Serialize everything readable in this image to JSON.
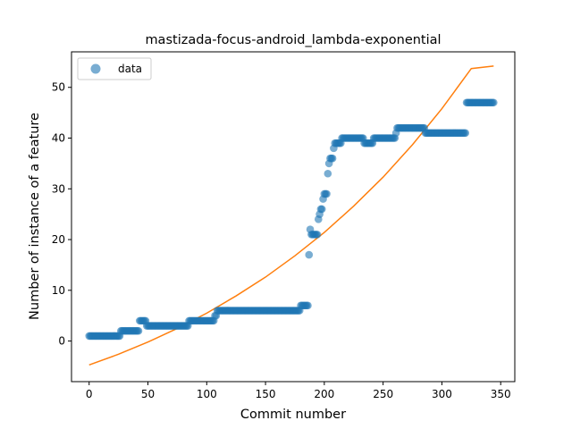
{
  "chart_data": {
    "type": "scatter",
    "title": "mastizada-focus-android_lambda-exponential",
    "xlabel": "Commit number",
    "ylabel": "Number of instance of a feature",
    "xlim": [
      -15,
      362
    ],
    "ylim": [
      -8,
      57
    ],
    "xticks": [
      0,
      50,
      100,
      150,
      200,
      250,
      300,
      350
    ],
    "yticks": [
      0,
      10,
      20,
      30,
      40,
      50
    ],
    "grid": false,
    "legend": {
      "position": "top-left",
      "entries": [
        "data"
      ]
    },
    "colors": {
      "data": "#1f77b4",
      "fit": "#ff7f0e"
    },
    "series": [
      {
        "name": "data",
        "kind": "scatter",
        "segments": [
          {
            "x": [
              0,
              26
            ],
            "y": 1
          },
          {
            "x": [
              27,
              42
            ],
            "y": 2
          },
          {
            "x": [
              43,
              48
            ],
            "y": 4
          },
          {
            "x": [
              49,
              84
            ],
            "y": 3
          },
          {
            "x": [
              85,
              106
            ],
            "y": 4
          },
          {
            "x": [
              107,
              108
            ],
            "y": 5
          },
          {
            "x": [
              109,
              179
            ],
            "y": 6
          },
          {
            "x": [
              180,
              186
            ],
            "y": 7
          }
        ],
        "points": [
          [
            187,
            17
          ],
          [
            188,
            22
          ],
          [
            189,
            21
          ],
          [
            190,
            21
          ],
          [
            191,
            21
          ],
          [
            192,
            21
          ],
          [
            193,
            21
          ],
          [
            194,
            21
          ],
          [
            195,
            24
          ],
          [
            196,
            25
          ],
          [
            197,
            26
          ],
          [
            198,
            26
          ],
          [
            199,
            28
          ],
          [
            200,
            29
          ],
          [
            201,
            29
          ],
          [
            202,
            29
          ],
          [
            203,
            33
          ],
          [
            204,
            35
          ],
          [
            205,
            36
          ],
          [
            206,
            36
          ],
          [
            207,
            36
          ],
          [
            208,
            38
          ],
          [
            209,
            39
          ],
          [
            210,
            39
          ],
          [
            211,
            39
          ],
          [
            212,
            39
          ],
          [
            213,
            39
          ],
          [
            214,
            39
          ],
          [
            215,
            40
          ],
          [
            216,
            40
          ],
          [
            217,
            40
          ],
          [
            218,
            40
          ],
          [
            219,
            40
          ],
          [
            220,
            40
          ],
          [
            221,
            40
          ],
          [
            222,
            40
          ],
          [
            223,
            40
          ],
          [
            224,
            40
          ],
          [
            225,
            40
          ],
          [
            226,
            40
          ],
          [
            227,
            40
          ],
          [
            228,
            40
          ],
          [
            229,
            40
          ],
          [
            230,
            40
          ],
          [
            231,
            40
          ],
          [
            232,
            40
          ],
          [
            233,
            40
          ],
          [
            234,
            39
          ],
          [
            235,
            39
          ],
          [
            236,
            39
          ],
          [
            237,
            39
          ],
          [
            238,
            39
          ],
          [
            239,
            39
          ],
          [
            240,
            39
          ],
          [
            241,
            39
          ],
          [
            242,
            40
          ],
          [
            243,
            40
          ],
          [
            244,
            40
          ],
          [
            245,
            40
          ],
          [
            246,
            40
          ],
          [
            247,
            40
          ],
          [
            248,
            40
          ],
          [
            249,
            40
          ],
          [
            250,
            40
          ],
          [
            251,
            40
          ],
          [
            252,
            40
          ],
          [
            253,
            40
          ],
          [
            254,
            40
          ],
          [
            255,
            40
          ],
          [
            256,
            40
          ],
          [
            257,
            40
          ],
          [
            258,
            40
          ],
          [
            259,
            40
          ],
          [
            260,
            40
          ],
          [
            261,
            41
          ],
          [
            262,
            42
          ],
          [
            263,
            42
          ],
          [
            264,
            42
          ],
          [
            265,
            42
          ],
          [
            266,
            42
          ],
          [
            267,
            42
          ],
          [
            268,
            42
          ],
          [
            269,
            42
          ],
          [
            270,
            42
          ],
          [
            271,
            42
          ],
          [
            272,
            42
          ],
          [
            273,
            42
          ],
          [
            274,
            42
          ],
          [
            275,
            42
          ],
          [
            276,
            42
          ],
          [
            277,
            42
          ],
          [
            278,
            42
          ],
          [
            279,
            42
          ],
          [
            280,
            42
          ],
          [
            281,
            42
          ],
          [
            282,
            42
          ],
          [
            283,
            42
          ],
          [
            284,
            42
          ],
          [
            285,
            42
          ],
          [
            286,
            41
          ],
          [
            287,
            41
          ],
          [
            288,
            41
          ],
          [
            289,
            41
          ],
          [
            290,
            41
          ],
          [
            291,
            41
          ],
          [
            292,
            41
          ],
          [
            293,
            41
          ],
          [
            294,
            41
          ],
          [
            295,
            41
          ],
          [
            296,
            41
          ],
          [
            297,
            41
          ],
          [
            298,
            41
          ],
          [
            299,
            41
          ],
          [
            300,
            41
          ],
          [
            301,
            41
          ],
          [
            302,
            41
          ],
          [
            303,
            41
          ],
          [
            304,
            41
          ],
          [
            305,
            41
          ],
          [
            306,
            41
          ],
          [
            307,
            41
          ],
          [
            308,
            41
          ],
          [
            309,
            41
          ],
          [
            310,
            41
          ],
          [
            311,
            41
          ],
          [
            312,
            41
          ],
          [
            313,
            41
          ],
          [
            314,
            41
          ],
          [
            315,
            41
          ],
          [
            316,
            41
          ],
          [
            317,
            41
          ],
          [
            318,
            41
          ],
          [
            319,
            41
          ],
          [
            320,
            41
          ],
          [
            321,
            47
          ],
          [
            322,
            47
          ],
          [
            323,
            47
          ],
          [
            324,
            47
          ],
          [
            325,
            47
          ],
          [
            326,
            47
          ],
          [
            327,
            47
          ],
          [
            328,
            47
          ],
          [
            329,
            47
          ],
          [
            330,
            47
          ],
          [
            331,
            47
          ],
          [
            332,
            47
          ],
          [
            333,
            47
          ],
          [
            334,
            47
          ],
          [
            335,
            47
          ],
          [
            336,
            47
          ],
          [
            337,
            47
          ],
          [
            338,
            47
          ],
          [
            339,
            47
          ],
          [
            340,
            47
          ],
          [
            341,
            47
          ],
          [
            342,
            47
          ],
          [
            343,
            47
          ],
          [
            344,
            47
          ]
        ]
      },
      {
        "kind": "line",
        "x": [
          0,
          25,
          50,
          75,
          100,
          125,
          150,
          175,
          200,
          225,
          250,
          275,
          300,
          325,
          344
        ],
        "y": [
          -4.7,
          -2.6,
          -0.2,
          2.5,
          5.5,
          8.9,
          12.6,
          16.8,
          21.4,
          26.6,
          32.3,
          38.7,
          45.8,
          53.7,
          54.2
        ]
      }
    ]
  }
}
